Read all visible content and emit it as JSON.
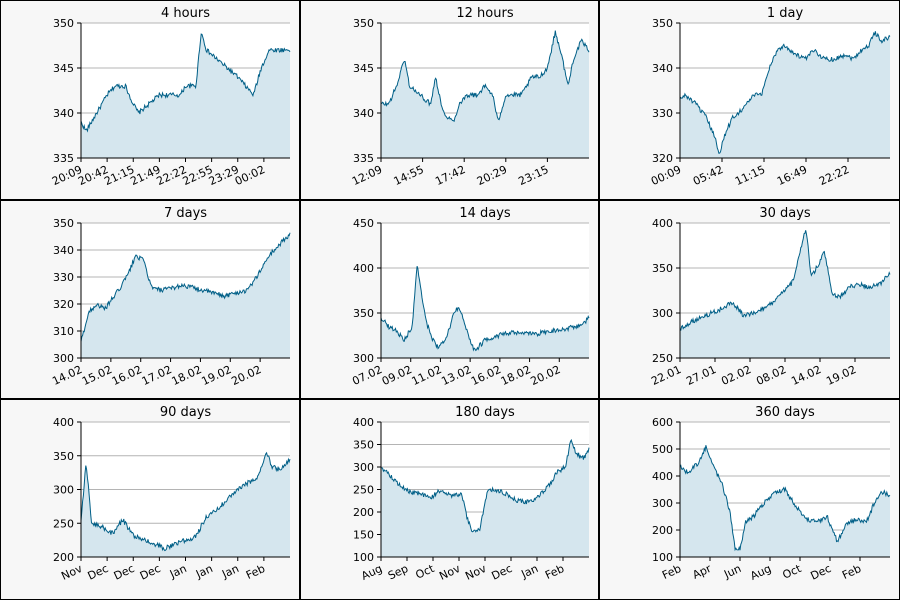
{
  "colors": {
    "line": "#005f87",
    "fill": "#d5e6ee",
    "grid": "#b4b4b4"
  },
  "chart_data": [
    {
      "type": "area",
      "title": "4 hours",
      "ylim": [
        335,
        350
      ],
      "yticks": [
        335,
        340,
        345,
        350
      ],
      "xticks": [
        "20:09",
        "20:42",
        "21:15",
        "21:49",
        "22:22",
        "22:55",
        "23:29",
        "00:02"
      ],
      "anchors": [
        [
          0,
          339
        ],
        [
          2,
          338
        ],
        [
          6,
          340
        ],
        [
          10,
          342
        ],
        [
          13,
          343
        ],
        [
          17,
          343
        ],
        [
          20,
          341
        ],
        [
          22,
          340
        ],
        [
          26,
          341
        ],
        [
          30,
          342
        ],
        [
          34,
          342
        ],
        [
          38,
          342
        ],
        [
          40,
          343
        ],
        [
          44,
          343
        ],
        [
          46,
          349
        ],
        [
          48,
          347
        ],
        [
          52,
          346
        ],
        [
          56,
          345
        ],
        [
          60,
          344
        ],
        [
          63,
          343
        ],
        [
          66,
          342
        ],
        [
          69,
          345
        ],
        [
          72,
          347
        ],
        [
          75,
          347
        ],
        [
          78,
          347
        ],
        [
          80,
          347
        ]
      ]
    },
    {
      "type": "area",
      "title": "12 hours",
      "ylim": [
        335,
        350
      ],
      "yticks": [
        335,
        340,
        345,
        350
      ],
      "xticks": [
        "12:09",
        "14:55",
        "17:42",
        "20:29",
        "23:15"
      ],
      "anchors": [
        [
          0,
          341
        ],
        [
          3,
          341
        ],
        [
          6,
          343
        ],
        [
          9,
          346
        ],
        [
          11,
          343
        ],
        [
          15,
          342
        ],
        [
          19,
          341
        ],
        [
          21,
          344
        ],
        [
          24,
          340
        ],
        [
          28,
          339
        ],
        [
          30,
          341
        ],
        [
          33,
          342
        ],
        [
          37,
          342
        ],
        [
          40,
          343
        ],
        [
          43,
          342
        ],
        [
          45,
          339
        ],
        [
          48,
          342
        ],
        [
          51,
          342
        ],
        [
          54,
          342
        ],
        [
          58,
          344
        ],
        [
          61,
          344
        ],
        [
          64,
          345
        ],
        [
          67,
          349
        ],
        [
          69,
          347
        ],
        [
          72,
          343
        ],
        [
          74,
          346
        ],
        [
          77,
          348
        ],
        [
          80,
          347
        ]
      ]
    },
    {
      "type": "area",
      "title": "1 day",
      "ylim": [
        320,
        350
      ],
      "yticks": [
        320,
        330,
        340,
        350
      ],
      "xticks": [
        "00:09",
        "05:42",
        "11:15",
        "16:49",
        "22:22"
      ],
      "anchors": [
        [
          0,
          333
        ],
        [
          2,
          334
        ],
        [
          6,
          332
        ],
        [
          10,
          329
        ],
        [
          13,
          325
        ],
        [
          15,
          321
        ],
        [
          17,
          325
        ],
        [
          20,
          329
        ],
        [
          24,
          331
        ],
        [
          28,
          334
        ],
        [
          31,
          334
        ],
        [
          34,
          340
        ],
        [
          37,
          344
        ],
        [
          40,
          345
        ],
        [
          44,
          343
        ],
        [
          48,
          342
        ],
        [
          51,
          344
        ],
        [
          55,
          342
        ],
        [
          59,
          342
        ],
        [
          63,
          343
        ],
        [
          66,
          342
        ],
        [
          69,
          344
        ],
        [
          72,
          345
        ],
        [
          74,
          348
        ],
        [
          77,
          346
        ],
        [
          80,
          347
        ]
      ]
    },
    {
      "type": "area",
      "title": "7 days",
      "ylim": [
        300,
        350
      ],
      "yticks": [
        300,
        310,
        320,
        330,
        340,
        350
      ],
      "xticks": [
        "14.02",
        "15.02",
        "16.02",
        "17.02",
        "18.02",
        "19.02",
        "20.02"
      ],
      "anchors": [
        [
          0,
          306
        ],
        [
          3,
          317
        ],
        [
          6,
          320
        ],
        [
          9,
          318
        ],
        [
          12,
          322
        ],
        [
          15,
          326
        ],
        [
          18,
          331
        ],
        [
          21,
          338
        ],
        [
          24,
          336
        ],
        [
          27,
          326
        ],
        [
          31,
          325
        ],
        [
          35,
          326
        ],
        [
          39,
          327
        ],
        [
          43,
          326
        ],
        [
          47,
          325
        ],
        [
          51,
          324
        ],
        [
          55,
          323
        ],
        [
          59,
          324
        ],
        [
          63,
          325
        ],
        [
          66,
          328
        ],
        [
          69,
          333
        ],
        [
          72,
          338
        ],
        [
          75,
          341
        ],
        [
          78,
          344
        ],
        [
          80,
          346
        ]
      ]
    },
    {
      "type": "area",
      "title": "14 days",
      "ylim": [
        300,
        450
      ],
      "yticks": [
        300,
        350,
        400,
        450
      ],
      "xticks": [
        "07.02",
        "09.02",
        "11.02",
        "13.02",
        "16.02",
        "18.02",
        "20.02"
      ],
      "anchors": [
        [
          0,
          345
        ],
        [
          3,
          335
        ],
        [
          6,
          330
        ],
        [
          9,
          320
        ],
        [
          12,
          335
        ],
        [
          14,
          405
        ],
        [
          16,
          360
        ],
        [
          18,
          335
        ],
        [
          20,
          320
        ],
        [
          22,
          312
        ],
        [
          25,
          320
        ],
        [
          28,
          350
        ],
        [
          30,
          357
        ],
        [
          33,
          330
        ],
        [
          36,
          308
        ],
        [
          40,
          320
        ],
        [
          45,
          325
        ],
        [
          50,
          328
        ],
        [
          55,
          327
        ],
        [
          60,
          327
        ],
        [
          65,
          330
        ],
        [
          70,
          332
        ],
        [
          75,
          335
        ],
        [
          78,
          338
        ],
        [
          80,
          345
        ]
      ]
    },
    {
      "type": "area",
      "title": "30 days",
      "ylim": [
        250,
        400
      ],
      "yticks": [
        250,
        300,
        350,
        400
      ],
      "xticks": [
        "22.01",
        "27.01",
        "02.02",
        "08.02",
        "14.02",
        "19.02"
      ],
      "anchors": [
        [
          0,
          282
        ],
        [
          4,
          290
        ],
        [
          8,
          295
        ],
        [
          12,
          300
        ],
        [
          16,
          305
        ],
        [
          20,
          312
        ],
        [
          24,
          298
        ],
        [
          28,
          300
        ],
        [
          32,
          305
        ],
        [
          36,
          313
        ],
        [
          40,
          325
        ],
        [
          43,
          335
        ],
        [
          46,
          370
        ],
        [
          48,
          395
        ],
        [
          50,
          340
        ],
        [
          53,
          355
        ],
        [
          55,
          368
        ],
        [
          58,
          320
        ],
        [
          61,
          318
        ],
        [
          65,
          330
        ],
        [
          69,
          332
        ],
        [
          72,
          328
        ],
        [
          76,
          332
        ],
        [
          80,
          345
        ]
      ]
    },
    {
      "type": "area",
      "title": "90 days",
      "ylim": [
        200,
        400
      ],
      "yticks": [
        200,
        250,
        300,
        350,
        400
      ],
      "xticks": [
        "Nov",
        "Dec",
        "Dec",
        "Dec",
        "Jan",
        "Jan",
        "Jan",
        "Feb"
      ],
      "anchors": [
        [
          0,
          255
        ],
        [
          2,
          340
        ],
        [
          4,
          250
        ],
        [
          8,
          245
        ],
        [
          12,
          235
        ],
        [
          16,
          255
        ],
        [
          20,
          232
        ],
        [
          24,
          225
        ],
        [
          28,
          220
        ],
        [
          32,
          212
        ],
        [
          36,
          220
        ],
        [
          40,
          225
        ],
        [
          44,
          230
        ],
        [
          48,
          260
        ],
        [
          52,
          270
        ],
        [
          56,
          285
        ],
        [
          60,
          300
        ],
        [
          64,
          310
        ],
        [
          68,
          320
        ],
        [
          71,
          355
        ],
        [
          73,
          335
        ],
        [
          75,
          330
        ],
        [
          78,
          335
        ],
        [
          80,
          345
        ]
      ]
    },
    {
      "type": "area",
      "title": "180 days",
      "ylim": [
        100,
        400
      ],
      "yticks": [
        100,
        150,
        200,
        250,
        300,
        350,
        400
      ],
      "xticks": [
        "Aug",
        "Sep",
        "Oct",
        "Nov",
        "Nov",
        "Dec",
        "Jan",
        "Feb"
      ],
      "anchors": [
        [
          0,
          300
        ],
        [
          3,
          285
        ],
        [
          7,
          260
        ],
        [
          11,
          245
        ],
        [
          15,
          240
        ],
        [
          19,
          230
        ],
        [
          23,
          250
        ],
        [
          27,
          235
        ],
        [
          31,
          240
        ],
        [
          33,
          190
        ],
        [
          35,
          158
        ],
        [
          38,
          160
        ],
        [
          41,
          250
        ],
        [
          44,
          250
        ],
        [
          48,
          240
        ],
        [
          52,
          225
        ],
        [
          56,
          222
        ],
        [
          60,
          230
        ],
        [
          64,
          255
        ],
        [
          68,
          290
        ],
        [
          71,
          300
        ],
        [
          73,
          360
        ],
        [
          75,
          330
        ],
        [
          78,
          320
        ],
        [
          80,
          340
        ]
      ]
    },
    {
      "type": "area",
      "title": "360 days",
      "ylim": [
        100,
        600
      ],
      "yticks": [
        100,
        200,
        300,
        400,
        500,
        600
      ],
      "xticks": [
        "Feb",
        "Apr",
        "Jun",
        "Aug",
        "Oct",
        "Dec",
        "Feb"
      ],
      "anchors": [
        [
          0,
          440
        ],
        [
          3,
          410
        ],
        [
          7,
          450
        ],
        [
          10,
          510
        ],
        [
          13,
          430
        ],
        [
          16,
          370
        ],
        [
          19,
          270
        ],
        [
          21,
          135
        ],
        [
          23,
          130
        ],
        [
          25,
          230
        ],
        [
          28,
          250
        ],
        [
          32,
          300
        ],
        [
          36,
          340
        ],
        [
          40,
          350
        ],
        [
          44,
          290
        ],
        [
          48,
          240
        ],
        [
          52,
          230
        ],
        [
          56,
          250
        ],
        [
          60,
          155
        ],
        [
          63,
          220
        ],
        [
          67,
          240
        ],
        [
          71,
          230
        ],
        [
          74,
          300
        ],
        [
          77,
          340
        ],
        [
          80,
          330
        ]
      ]
    }
  ]
}
